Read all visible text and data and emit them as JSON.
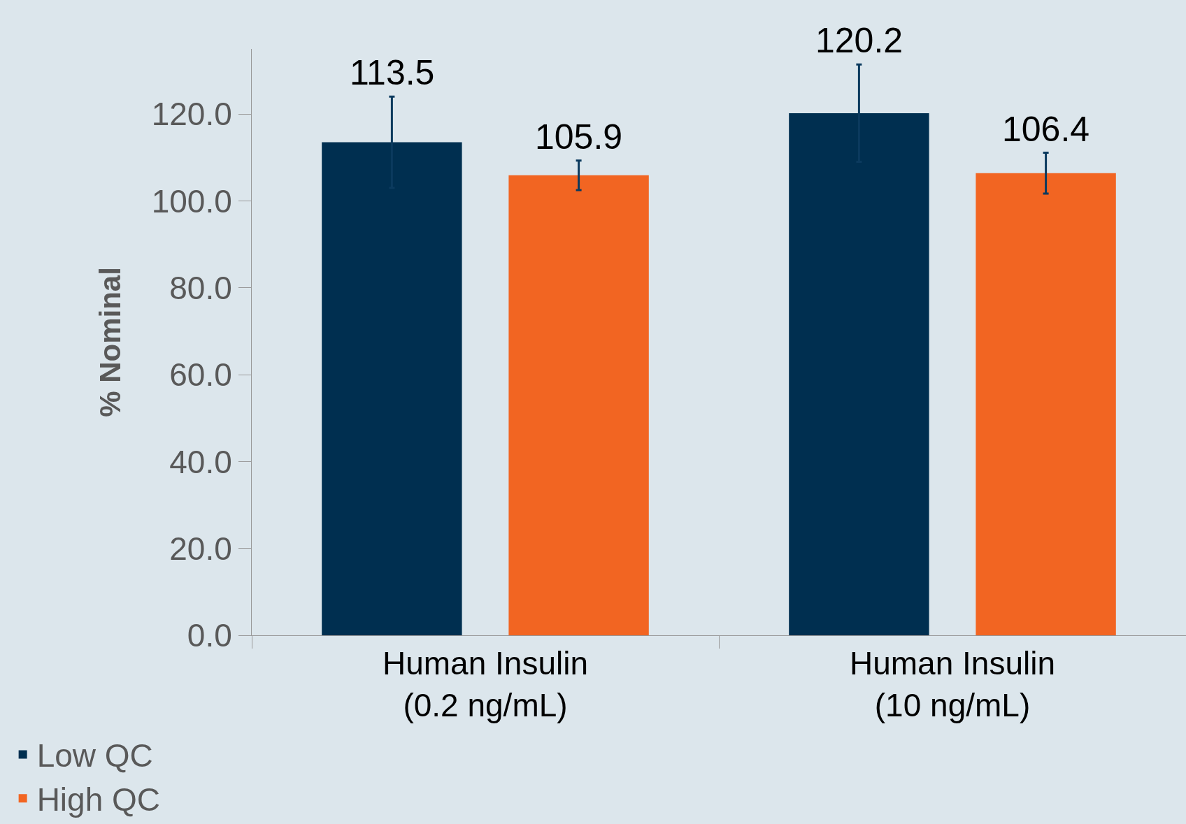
{
  "chart_data": {
    "type": "bar",
    "ylabel": "% Nominal",
    "categories": [
      "Human Insulin\n(0.2 ng/mL)",
      "Human Insulin\n(10 ng/mL)"
    ],
    "series": [
      {
        "name": "Low QC",
        "color": "#002f50",
        "values": [
          113.5,
          120.2
        ],
        "errors": [
          10.5,
          11.2
        ]
      },
      {
        "name": "High QC",
        "color": "#f26522",
        "values": [
          105.9,
          106.4
        ],
        "errors": [
          3.4,
          4.7
        ]
      }
    ],
    "ylim": [
      0,
      135
    ],
    "yticks": [
      {
        "value": 0,
        "label": "0.0"
      },
      {
        "value": 20,
        "label": "20.0"
      },
      {
        "value": 40,
        "label": "40.0"
      },
      {
        "value": 60,
        "label": "60.0"
      },
      {
        "value": 80,
        "label": "80.0"
      },
      {
        "value": 100,
        "label": "100.0"
      },
      {
        "value": 120,
        "label": "120.0"
      }
    ],
    "data_labels": true,
    "grid": false,
    "legend": "bottom left"
  }
}
